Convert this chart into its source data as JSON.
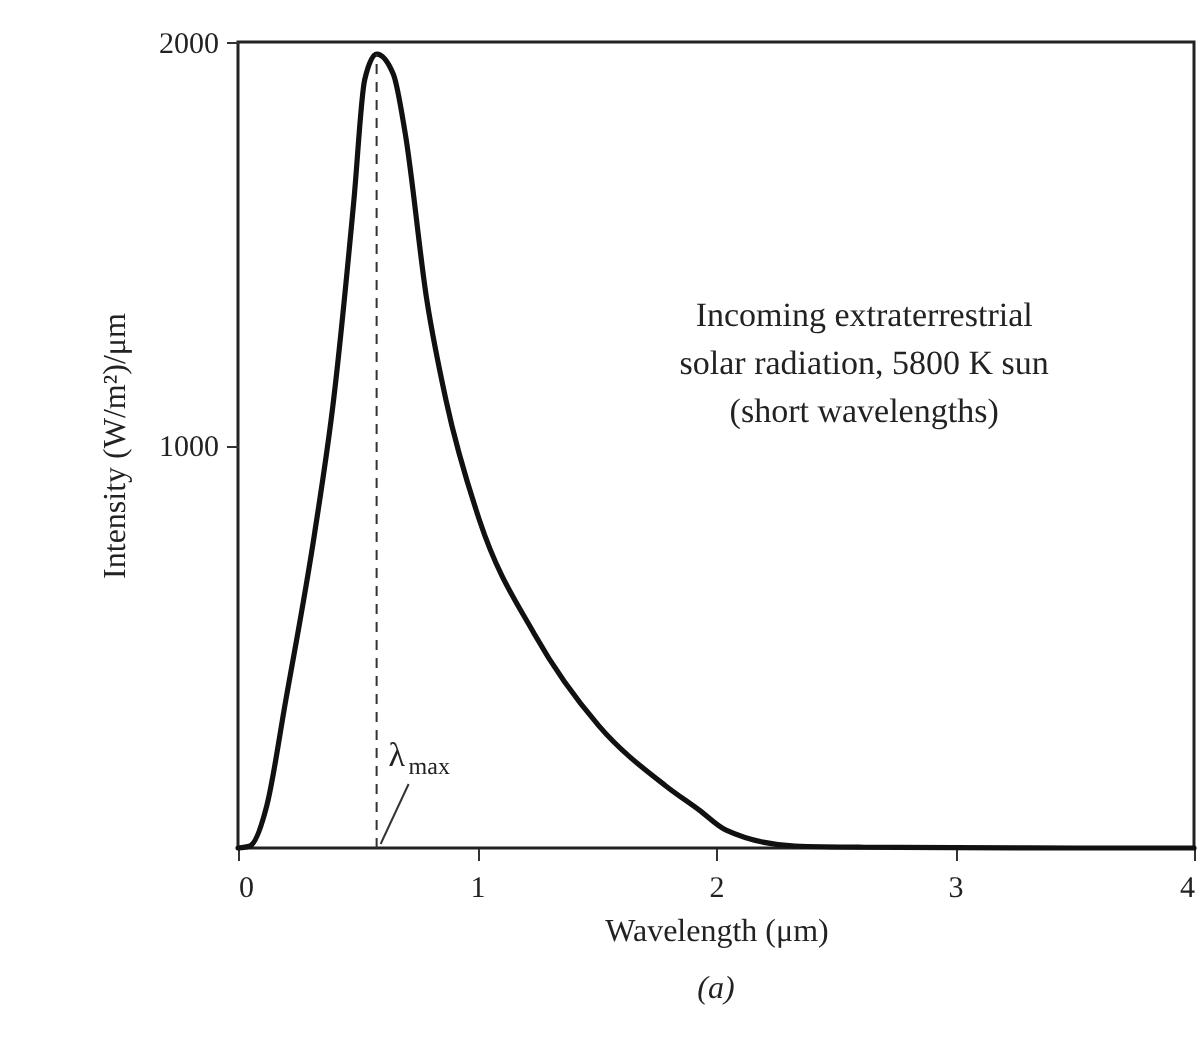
{
  "chart_data": {
    "type": "line",
    "xlabel": "Wavelength (μm)",
    "ylabel": "Intensity (W/m²)/μm",
    "x": [
      0,
      0.05,
      0.12,
      0.2,
      0.32,
      0.4,
      0.485,
      0.53,
      0.58,
      0.65,
      0.7,
      0.79,
      0.87,
      1.01,
      1.24,
      1.51,
      1.79,
      1.93,
      2.04,
      2.33,
      2.6,
      3,
      3.5,
      4
    ],
    "series": [
      {
        "color": "#111111",
        "values": [
          0,
          5,
          104,
          367,
          779,
          1112,
          1608,
          1906,
          1970,
          1920,
          1772,
          1360,
          1112,
          814,
          531,
          303,
          154,
          94,
          45,
          5,
          2,
          1,
          0,
          0
        ]
      }
    ],
    "xlim": [
      0,
      4
    ],
    "xticks": [
      0,
      1,
      2,
      3,
      4
    ],
    "ylim": [
      0,
      2000
    ],
    "yticks": [
      1000,
      2000
    ],
    "ref_lines": [
      {
        "axis": "x",
        "value": 0.58,
        "label": "λ$_{max}$",
        "line_style": "dashed"
      }
    ],
    "annotations": [
      "Incoming extraterrestrial\nsolar radiation, 5800 K sun\n(short wavelengths)",
      "(a)"
    ],
    "line_style": "solid",
    "marker": "none",
    "grid": false
  }
}
